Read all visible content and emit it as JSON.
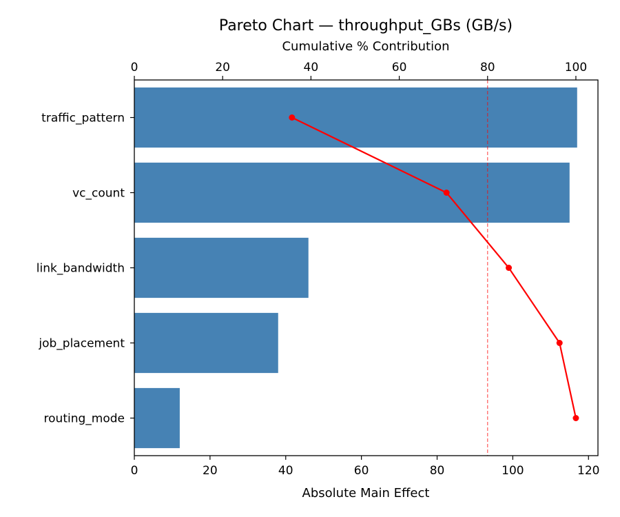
{
  "chart_data": {
    "type": "bar",
    "orientation": "horizontal",
    "title": "Pareto Chart — throughput_GBs (GB/s)",
    "xlabel": "Absolute Main Effect",
    "x2label": "Cumulative % Contribution",
    "ylabel": "",
    "categories": [
      "traffic_pattern",
      "vc_count",
      "link_bandwidth",
      "job_placement",
      "routing_mode"
    ],
    "values": [
      117.0,
      115.0,
      46.0,
      38.0,
      12.0
    ],
    "cumulative_pct": [
      35.7,
      70.7,
      84.8,
      96.3,
      100.0
    ],
    "threshold_pct": 80,
    "xlim": [
      0,
      122.5
    ],
    "x_ticks": [
      0,
      20,
      40,
      60,
      80,
      100,
      120
    ],
    "x2lim": [
      0,
      105
    ],
    "x2_ticks": [
      0,
      20,
      40,
      60,
      80,
      100
    ],
    "grid": false,
    "colors": {
      "bar": "#4682b4",
      "cumulative_line": "#ff0000",
      "threshold_line": "#ff0000"
    }
  }
}
